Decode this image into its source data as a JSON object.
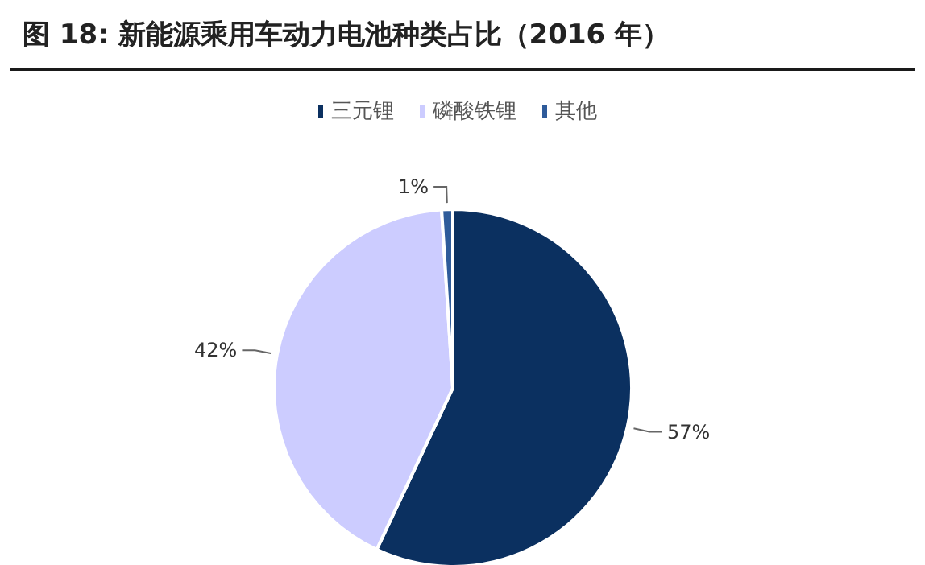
{
  "chart_data": {
    "type": "pie",
    "title": "图 18:  新能源乘用车动力电池种类占比（2016 年）",
    "categories": [
      "三元锂",
      "磷酸铁锂",
      "其他"
    ],
    "values": [
      57,
      42,
      1
    ],
    "colors": [
      "#0b3060",
      "#ccccff",
      "#2e5b9a"
    ],
    "value_labels": [
      "57%",
      "42%",
      "1%"
    ],
    "legend": "top"
  }
}
